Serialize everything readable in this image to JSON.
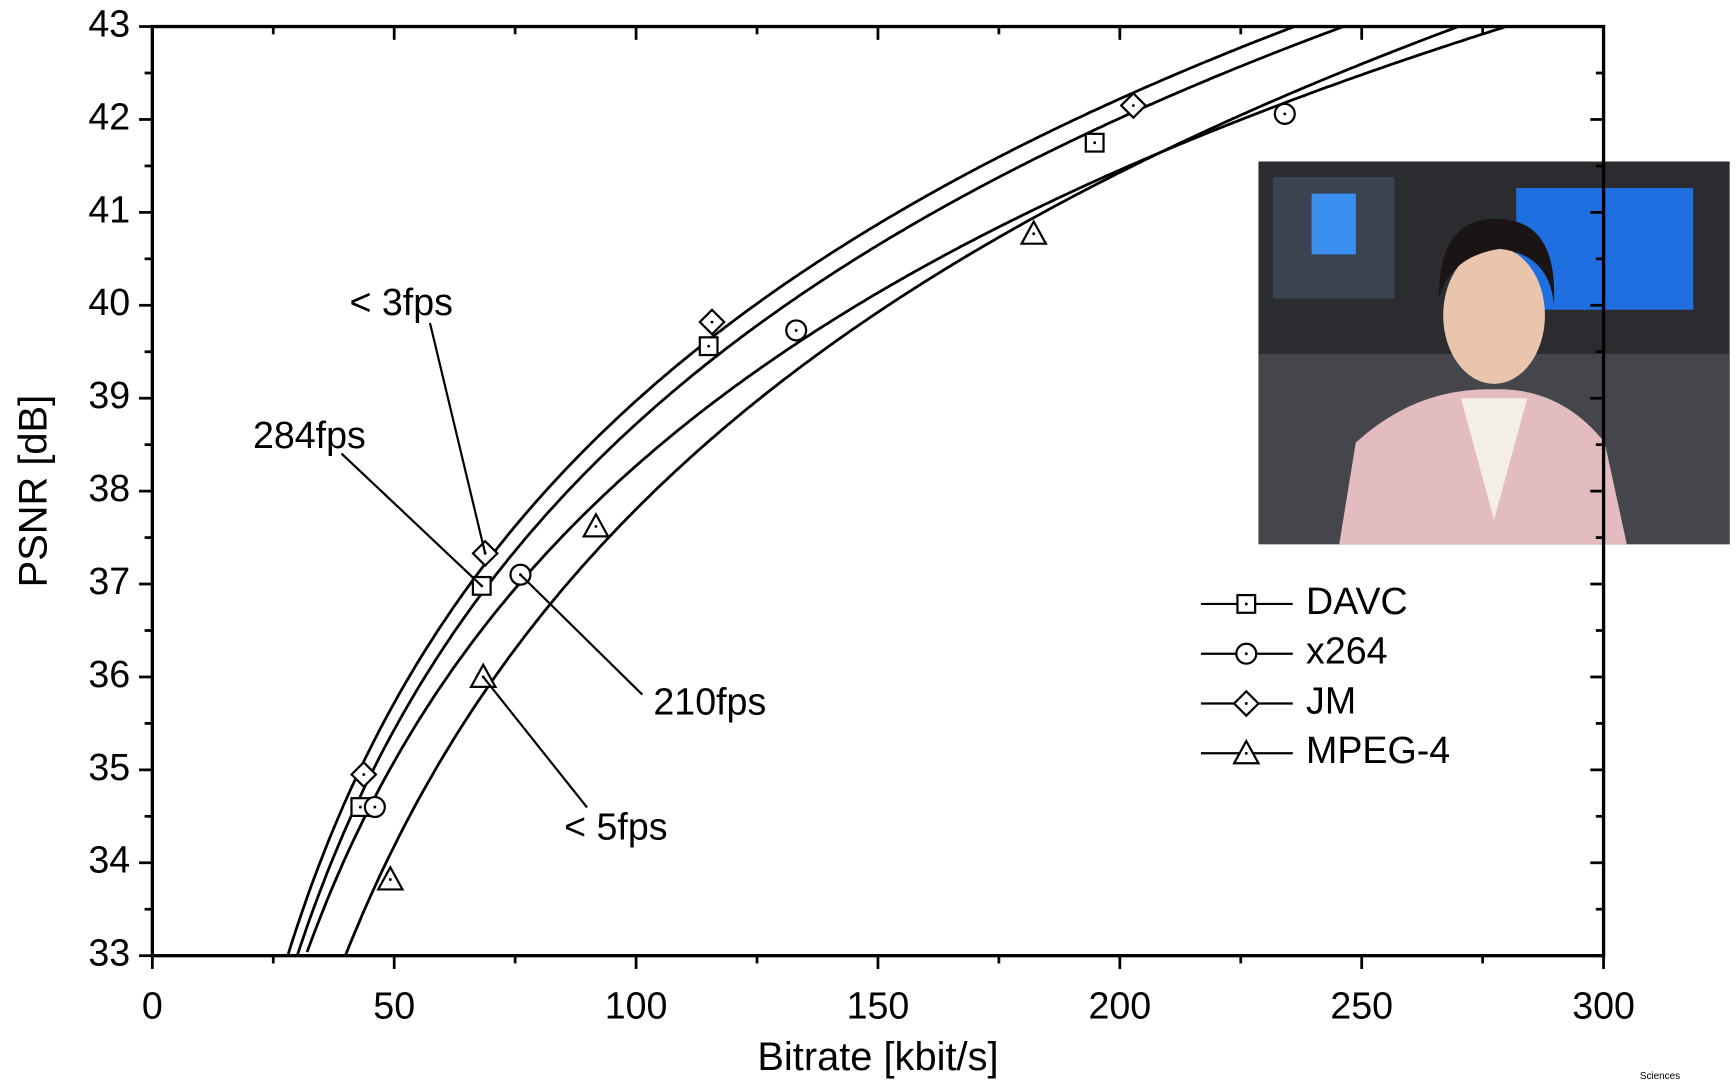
{
  "chart_data": {
    "type": "line",
    "x_label": "Bitrate [kbit/s]",
    "y_label": "PSNR [dB]",
    "xlim": [
      0,
      300
    ],
    "xticks": [
      0,
      50,
      100,
      150,
      200,
      250,
      300
    ],
    "ylim": [
      33,
      43
    ],
    "yticks": [
      33,
      34,
      35,
      36,
      37,
      38,
      39,
      40,
      41,
      42,
      43
    ],
    "series": [
      {
        "name": "DAVC",
        "marker": "square",
        "color": "#000000",
        "x": [
          43,
          68.1,
          115,
          194.8
        ],
        "values": [
          34.6,
          36.98,
          39.56,
          41.75
        ]
      },
      {
        "name": "x264",
        "marker": "circle",
        "color": "#000000",
        "x": [
          46,
          76.1,
          133.1,
          234.1
        ],
        "values": [
          34.6,
          37.1,
          39.73,
          42.06
        ]
      },
      {
        "name": "JM",
        "marker": "diamond",
        "color": "#000000",
        "x": [
          43.7,
          68.8,
          115.7,
          202.8
        ],
        "values": [
          34.95,
          37.33,
          39.82,
          42.15
        ]
      },
      {
        "name": "MPEG-4",
        "marker": "triangle",
        "color": "#000000",
        "x": [
          49.2,
          68.4,
          91.7,
          182.2
        ],
        "values": [
          33.82,
          36.0,
          37.62,
          40.77
        ]
      }
    ],
    "annotations": [
      "< 3fps",
      "284fps",
      "210fps",
      "< 5fps"
    ],
    "watermark": "Sciences"
  }
}
